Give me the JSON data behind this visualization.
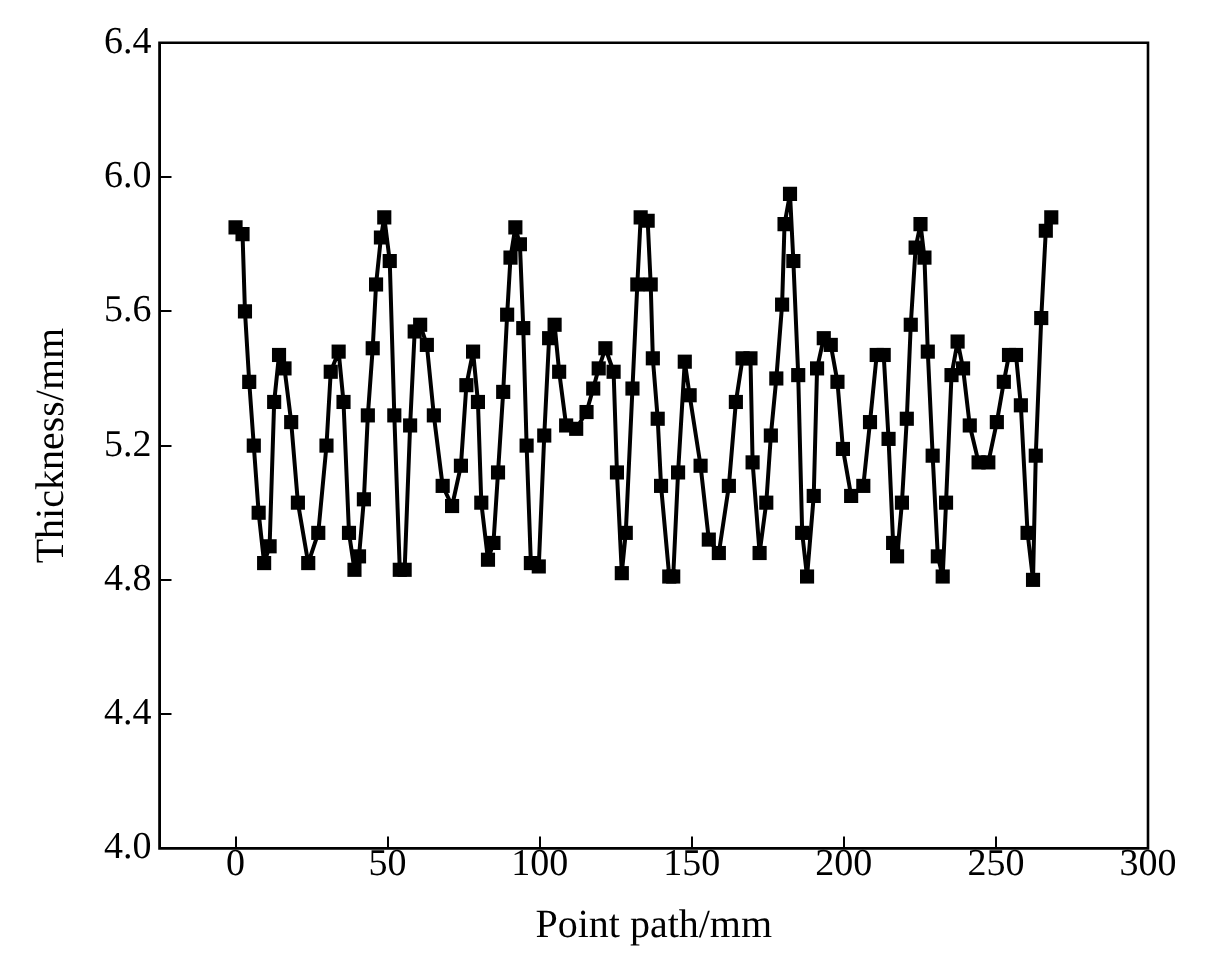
{
  "chart_data": {
    "type": "line",
    "xlabel": "Point path/mm",
    "ylabel": "Thickness/mm",
    "xlim": [
      -25,
      300
    ],
    "xticks": [
      0,
      50,
      100,
      150,
      200,
      250,
      300
    ],
    "ylim": [
      4.0,
      6.4
    ],
    "yticks": [
      {
        "value": 4.0,
        "label": "4.0"
      },
      {
        "value": 4.4,
        "label": "4.4"
      },
      {
        "value": 4.8,
        "label": "4.8"
      },
      {
        "value": 5.2,
        "label": "5.2"
      },
      {
        "value": 5.6,
        "label": "5.6"
      },
      {
        "value": 6.0,
        "label": "6.0"
      },
      {
        "value": 6.4,
        "label": "6.4"
      }
    ],
    "grid": false,
    "legend": false,
    "marker": "square",
    "line_style": "solid",
    "series": [
      {
        "color": "#000000",
        "x": [
          0.0,
          2.3,
          3.1,
          4.5,
          6.0,
          7.6,
          9.4,
          11.2,
          12.7,
          14.3,
          16.1,
          18.3,
          20.5,
          23.9,
          27.2,
          29.9,
          31.3,
          33.9,
          35.5,
          37.3,
          39.1,
          40.6,
          42.2,
          43.5,
          45.1,
          46.2,
          47.8,
          48.9,
          50.7,
          52.2,
          54.0,
          55.6,
          57.4,
          58.9,
          60.7,
          62.9,
          65.2,
          68.1,
          71.2,
          74.1,
          75.9,
          78.1,
          79.7,
          80.8,
          83.0,
          84.8,
          86.3,
          88.0,
          89.3,
          90.4,
          92.0,
          93.5,
          94.6,
          95.7,
          97.1,
          99.7,
          101.5,
          103.1,
          104.9,
          106.4,
          108.7,
          112.0,
          115.4,
          117.6,
          119.4,
          121.6,
          124.3,
          125.4,
          127.0,
          128.3,
          130.5,
          132.1,
          133.2,
          135.5,
          136.5,
          137.2,
          138.8,
          139.9,
          142.6,
          143.9,
          145.5,
          147.7,
          149.3,
          152.9,
          155.6,
          158.9,
          162.2,
          164.5,
          166.7,
          169.3,
          170.0,
          172.3,
          174.5,
          176.0,
          177.8,
          179.7,
          180.5,
          182.3,
          183.4,
          185.0,
          186.3,
          187.9,
          190.1,
          191.2,
          193.4,
          195.7,
          197.9,
          199.7,
          202.4,
          206.4,
          208.6,
          210.8,
          213.1,
          214.7,
          216.2,
          217.5,
          219.1,
          220.7,
          222.0,
          223.6,
          225.2,
          226.5,
          227.6,
          229.2,
          230.9,
          232.5,
          233.6,
          235.4,
          237.4,
          239.2,
          241.4,
          244.3,
          247.5,
          250.3,
          252.6,
          254.3,
          256.6,
          258.2,
          260.4,
          262.2,
          263.1,
          264.9,
          266.4,
          268.2
        ],
        "values": [
          5.85,
          5.83,
          5.6,
          5.39,
          5.2,
          5.0,
          4.85,
          4.9,
          5.33,
          5.47,
          5.43,
          5.27,
          5.03,
          4.85,
          4.94,
          5.2,
          5.42,
          5.48,
          5.33,
          4.94,
          4.83,
          4.87,
          5.04,
          5.29,
          5.49,
          5.68,
          5.82,
          5.88,
          5.75,
          5.29,
          4.83,
          4.83,
          5.26,
          5.54,
          5.56,
          5.5,
          5.29,
          5.08,
          5.02,
          5.14,
          5.38,
          5.48,
          5.33,
          5.03,
          4.86,
          4.91,
          5.12,
          5.36,
          5.59,
          5.76,
          5.85,
          5.8,
          5.55,
          5.2,
          4.85,
          4.84,
          5.23,
          5.52,
          5.56,
          5.42,
          5.26,
          5.25,
          5.3,
          5.37,
          5.43,
          5.49,
          5.42,
          5.12,
          4.82,
          4.94,
          5.37,
          5.68,
          5.88,
          5.87,
          5.68,
          5.46,
          5.28,
          5.08,
          4.81,
          4.81,
          5.12,
          5.45,
          5.35,
          5.14,
          4.92,
          4.88,
          5.08,
          5.33,
          5.46,
          5.46,
          5.15,
          4.88,
          5.03,
          5.23,
          5.4,
          5.62,
          5.86,
          5.95,
          5.75,
          5.41,
          4.94,
          4.81,
          5.05,
          5.43,
          5.52,
          5.5,
          5.39,
          5.19,
          5.05,
          5.08,
          5.27,
          5.47,
          5.47,
          5.22,
          4.91,
          4.87,
          5.03,
          5.28,
          5.56,
          5.79,
          5.86,
          5.76,
          5.48,
          5.17,
          4.87,
          4.81,
          5.03,
          5.41,
          5.51,
          5.43,
          5.26,
          5.15,
          5.15,
          5.27,
          5.39,
          5.47,
          5.47,
          5.32,
          4.94,
          4.8,
          5.17,
          5.58,
          5.84,
          5.88
        ]
      }
    ]
  }
}
